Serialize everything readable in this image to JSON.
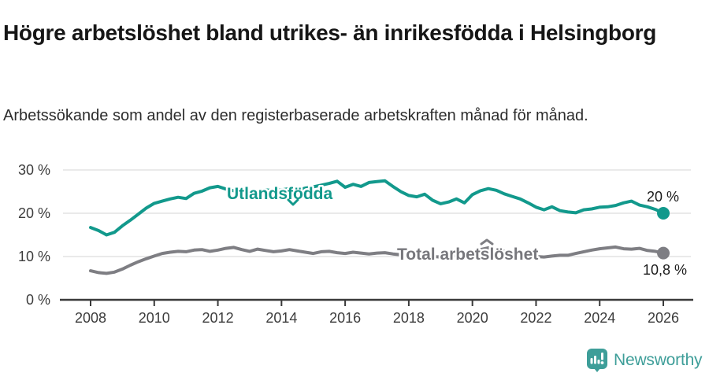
{
  "header": {
    "title": "Högre arbetslöshet bland utrikes- än inrikesfödda i Helsingborg",
    "subtitle": "Arbetssökande som andel av den registerbaserade arbetskraften månad för månad."
  },
  "chart_data": {
    "type": "line",
    "title": "Högre arbetslöshet bland utrikes- än inrikesfödda i Helsingborg",
    "subtitle": "Arbetssökande som andel av den registerbaserade arbetskraften månad för månad.",
    "xlabel": "",
    "ylabel": "",
    "x_start_year": 2008,
    "x_step_years": 0.25,
    "x_end_year": 2026,
    "xticks": [
      2008,
      2010,
      2012,
      2014,
      2016,
      2018,
      2020,
      2022,
      2024,
      2026
    ],
    "yticks": [
      {
        "value": 0,
        "label": "0 %"
      },
      {
        "value": 10,
        "label": "10 %"
      },
      {
        "value": 20,
        "label": "20 %"
      },
      {
        "value": 30,
        "label": "30 %"
      }
    ],
    "ylim": [
      0,
      30
    ],
    "grid": "horizontal",
    "legend_position": "on-line-labels",
    "colors": {
      "grid": "#e4e4e4",
      "axis": "#3a3a3a",
      "teal_series": "#12998C",
      "gray_series": "#7E7E83",
      "gray_label": "#77777C"
    },
    "series": [
      {
        "name": "Utlandsfödda",
        "color": "#12998C",
        "end_label": "20 %",
        "end_value": 20.0,
        "values": [
          16.7,
          16.0,
          15.0,
          15.6,
          17.1,
          18.4,
          19.8,
          21.2,
          22.3,
          22.8,
          23.3,
          23.7,
          23.4,
          24.6,
          25.1,
          25.9,
          26.2,
          25.6,
          25.2,
          25.5,
          25.1,
          25.0,
          25.4,
          25.2,
          25.4,
          25.7,
          25.3,
          25.8,
          26.1,
          26.5,
          26.9,
          27.4,
          26.0,
          26.7,
          26.2,
          27.1,
          27.3,
          27.5,
          26.2,
          25.0,
          24.1,
          23.8,
          24.4,
          23.0,
          22.2,
          22.6,
          23.3,
          22.4,
          24.3,
          25.2,
          25.7,
          25.3,
          24.5,
          23.9,
          23.3,
          22.4,
          21.4,
          20.8,
          21.5,
          20.6,
          20.3,
          20.1,
          20.8,
          21.0,
          21.4,
          21.5,
          21.8,
          22.4,
          22.8,
          21.9,
          21.5,
          20.9,
          20.0
        ]
      },
      {
        "name": "Total arbetslöshet",
        "color": "#7E7E83",
        "end_label": "10,8 %",
        "end_value": 10.8,
        "values": [
          6.7,
          6.3,
          6.1,
          6.4,
          7.1,
          8.0,
          8.8,
          9.5,
          10.1,
          10.7,
          11.0,
          11.2,
          11.1,
          11.5,
          11.6,
          11.2,
          11.5,
          11.9,
          12.1,
          11.6,
          11.2,
          11.7,
          11.4,
          11.1,
          11.3,
          11.6,
          11.3,
          11.0,
          10.7,
          11.1,
          11.2,
          10.9,
          10.7,
          11.0,
          10.8,
          10.6,
          10.8,
          10.9,
          10.6,
          10.4,
          10.2,
          10.1,
          10.3,
          10.0,
          9.9,
          10.1,
          10.2,
          10.3,
          10.6,
          11.6,
          12.0,
          11.7,
          11.2,
          10.8,
          10.5,
          10.1,
          10.0,
          9.9,
          10.1,
          10.3,
          10.3,
          10.7,
          11.1,
          11.5,
          11.8,
          12.0,
          12.2,
          11.8,
          11.7,
          11.9,
          11.4,
          11.2,
          10.8
        ]
      }
    ]
  },
  "footer": {
    "brand": "Newsworthy",
    "brand_color": "#3E9E99"
  }
}
